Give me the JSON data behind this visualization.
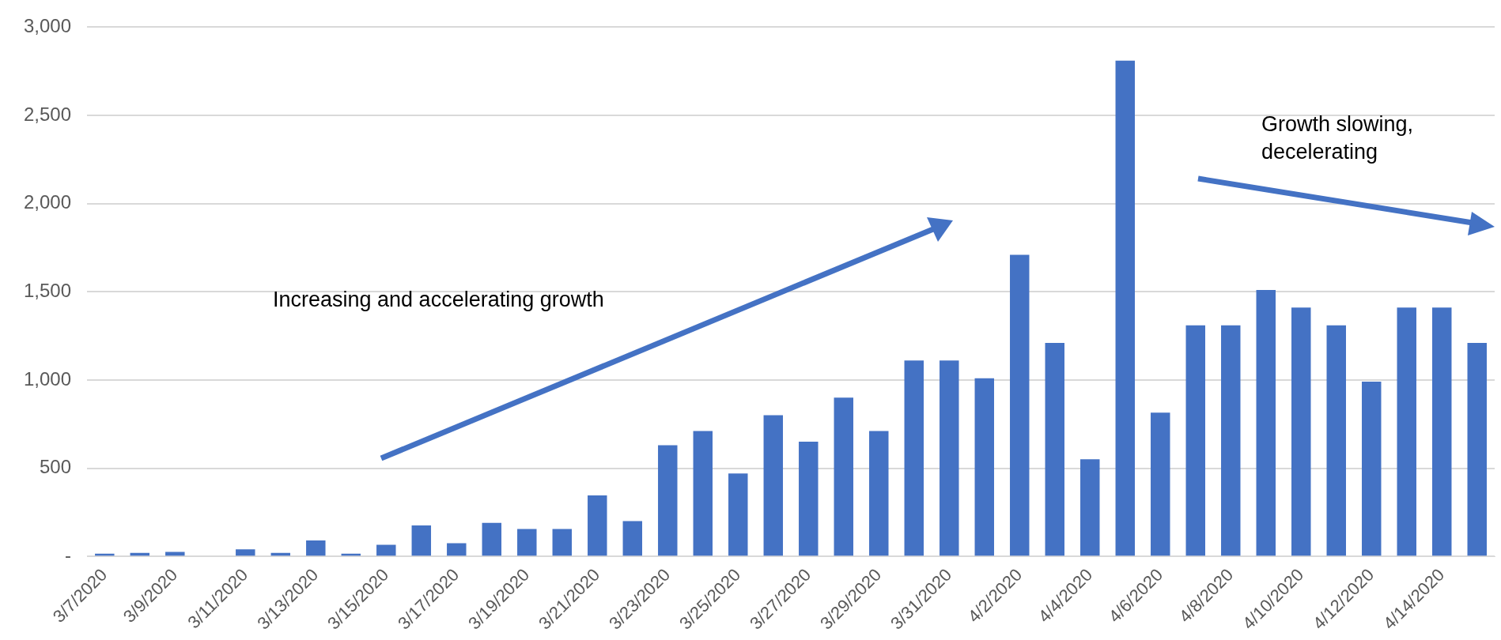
{
  "chart_data": {
    "type": "bar",
    "categories": [
      "3/7/2020",
      null,
      "3/9/2020",
      null,
      "3/11/2020",
      null,
      "3/13/2020",
      null,
      "3/15/2020",
      null,
      "3/17/2020",
      null,
      "3/19/2020",
      null,
      "3/21/2020",
      null,
      "3/23/2020",
      null,
      "3/25/2020",
      null,
      "3/27/2020",
      null,
      "3/29/2020",
      null,
      "3/31/2020",
      null,
      "4/2/2020",
      null,
      "4/4/2020",
      null,
      "4/6/2020",
      null,
      "4/8/2020",
      null,
      "4/10/2020",
      null,
      "4/12/2020",
      null,
      "4/14/2020",
      null
    ],
    "values": [
      15,
      20,
      25,
      0,
      40,
      20,
      90,
      15,
      65,
      175,
      75,
      190,
      155,
      155,
      345,
      200,
      630,
      710,
      470,
      800,
      650,
      900,
      710,
      1110,
      1110,
      1010,
      1710,
      1210,
      550,
      2810,
      815,
      1310,
      1310,
      1510,
      1410,
      1310,
      990,
      1410,
      1410,
      1210
    ],
    "color": "#4472c4",
    "ylim": [
      0,
      3000
    ],
    "yticks": [
      {
        "value": 0,
        "label": "-"
      },
      {
        "value": 500,
        "label": "500"
      },
      {
        "value": 1000,
        "label": "1,000"
      },
      {
        "value": 1500,
        "label": "1,500"
      },
      {
        "value": 2000,
        "label": "2,000"
      },
      {
        "value": 2500,
        "label": "2,500"
      },
      {
        "value": 3000,
        "label": "3,000"
      }
    ],
    "grid": "y",
    "annotations": [
      "Increasing and accelerating growth",
      "Growth slowing,\ndecelerating"
    ]
  }
}
